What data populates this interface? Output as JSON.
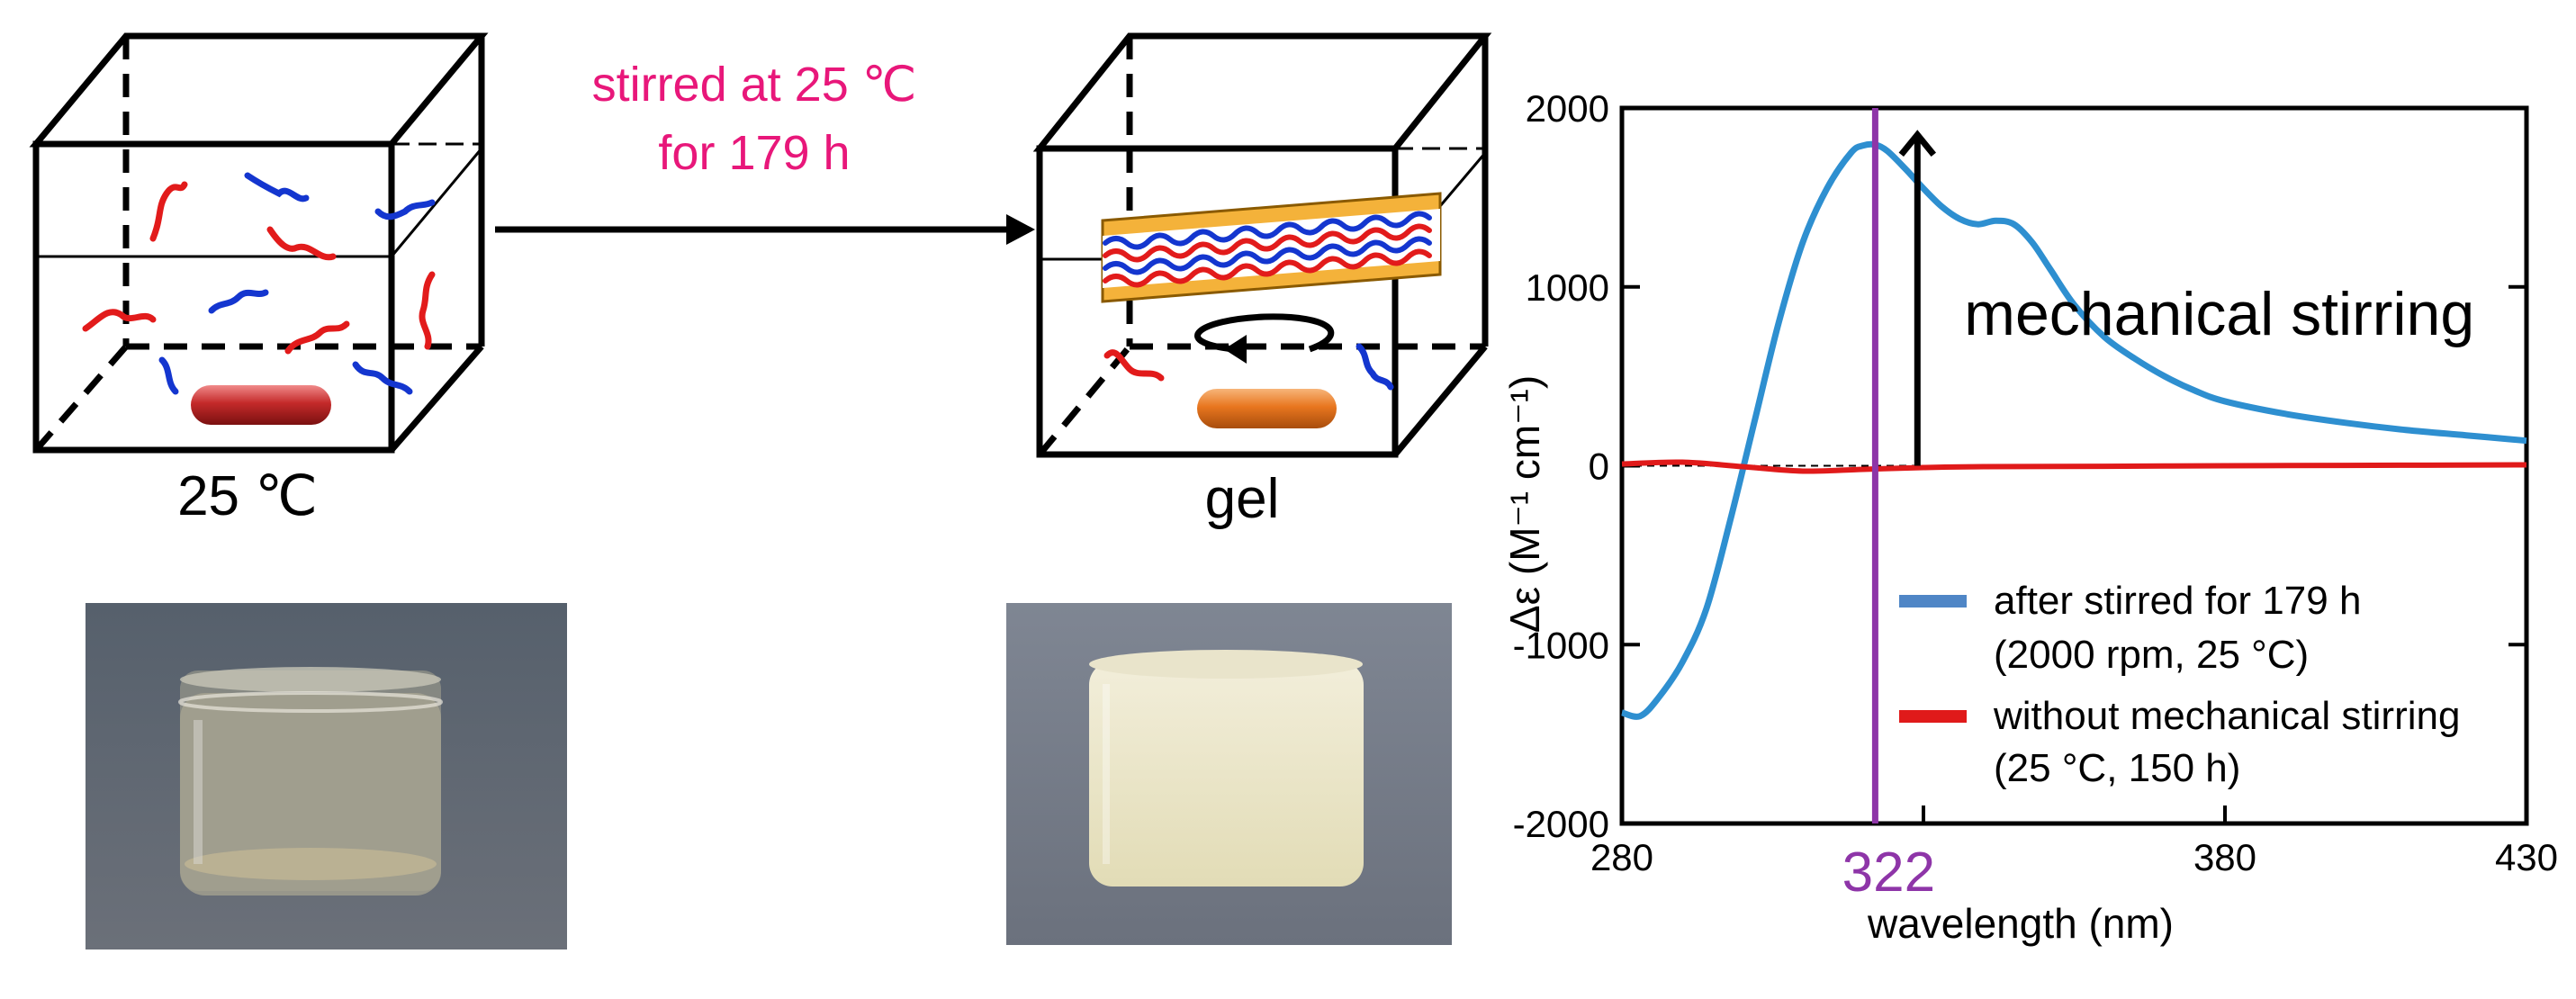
{
  "scheme": {
    "arrow_label_line1": "stirred at 25 ℃",
    "arrow_label_line2": "for 179 h",
    "left_box_caption": "25 ℃",
    "right_box_caption": "gel",
    "label_color": "#e8177a"
  },
  "chart_data": {
    "type": "line",
    "xlabel": "wavelength (nm)",
    "ylabel": "Δε (M⁻¹ cm⁻¹)",
    "xlim": [
      280,
      430
    ],
    "ylim": [
      -2000,
      2000
    ],
    "x_tick_labels": [
      "280",
      "380",
      "430"
    ],
    "y_tick_labels": [
      "2000",
      "1000",
      "0",
      "-1000",
      "-2000"
    ],
    "x_ticks": [
      280,
      330,
      380,
      430
    ],
    "y_ticks": [
      2000,
      1000,
      0,
      -1000,
      -2000
    ],
    "highlight": {
      "x": 322,
      "label": "322",
      "color": "#8e35a8"
    },
    "annotation": {
      "text": "mechanical stirring",
      "x": 329,
      "y_from": 0,
      "y_to": 1850
    },
    "legend": {
      "placement": "bottom-right",
      "entries": [
        {
          "line1": "after stirred for 179 h",
          "line2": "(2000 rpm, 25 °C)",
          "color": "#2e8fd0"
        },
        {
          "line1": "without mechanical stirring",
          "line2": "(25 °C, 150 h)",
          "color": "#e01a1a"
        }
      ]
    },
    "series": [
      {
        "color": "#2e8fd0",
        "x": [
          280,
          283,
          286,
          290,
          294,
          298,
          302,
          306,
          310,
          314,
          318,
          320,
          322,
          324,
          327,
          330,
          333,
          336,
          339,
          342,
          345,
          348,
          351,
          355,
          360,
          365,
          370,
          375,
          380,
          390,
          400,
          410,
          420,
          430
        ],
        "y": [
          -1380,
          -1400,
          -1300,
          -1100,
          -800,
          -300,
          250,
          800,
          1250,
          1550,
          1750,
          1790,
          1795,
          1760,
          1660,
          1550,
          1450,
          1380,
          1350,
          1370,
          1350,
          1250,
          1100,
          900,
          720,
          600,
          500,
          420,
          360,
          290,
          240,
          200,
          170,
          140
        ]
      },
      {
        "color": "#e01a1a",
        "x": [
          280,
          290,
          300,
          310,
          320,
          330,
          340,
          360,
          380,
          400,
          430
        ],
        "y": [
          10,
          20,
          -5,
          -30,
          -20,
          -10,
          -5,
          -3,
          0,
          2,
          5
        ]
      }
    ]
  }
}
